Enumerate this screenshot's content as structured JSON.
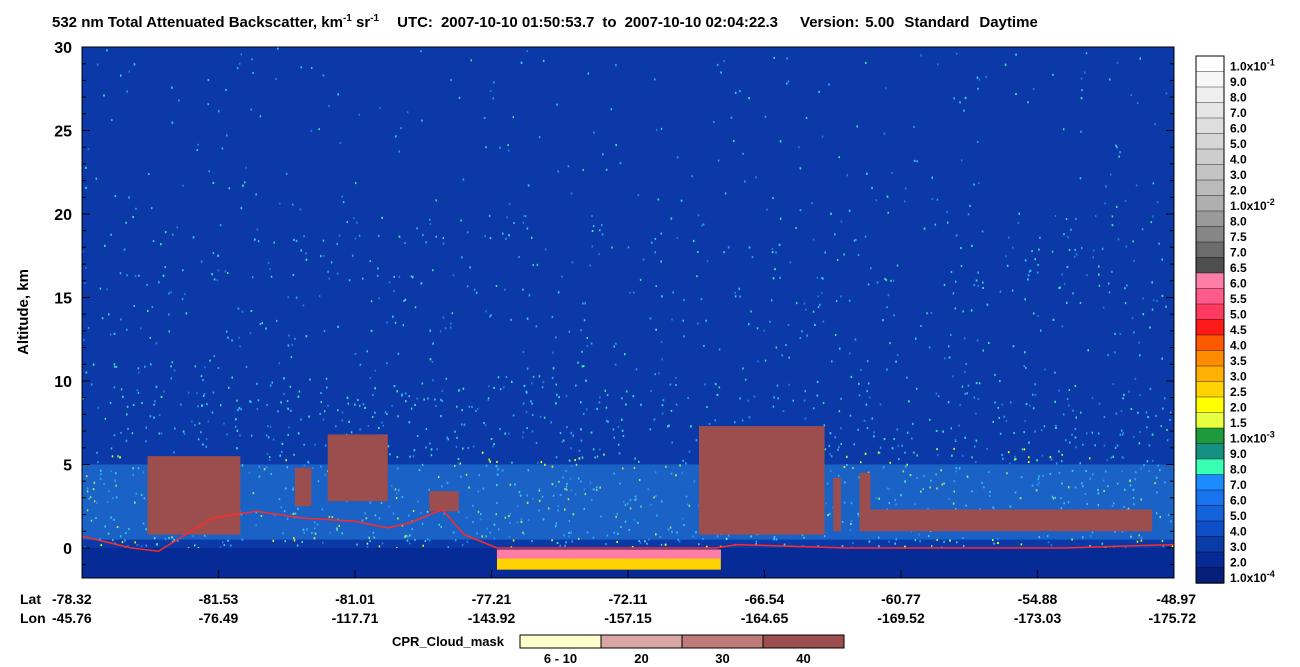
{
  "chart_data": {
    "type": "heatmap",
    "title": {
      "text": "532 nm Total Attenuated Backscatter, km",
      "unit_sup1": "-1",
      "unit_mid": " sr",
      "unit_sup2": "-1",
      "utc_label": "UTC:",
      "utc_start": "2007-10-10 01:50:53.7",
      "utc_to": "to",
      "utc_end": "2007-10-10 02:04:22.3",
      "version_label": "Version:",
      "version": "5.00",
      "mode": "Standard",
      "daytime": "Daytime"
    },
    "ylabel": "Altitude, km",
    "ylim": [
      -1.8,
      30
    ],
    "yticks": [
      "0",
      "5",
      "10",
      "15",
      "20",
      "25",
      "30"
    ],
    "ytick_values": [
      0,
      5,
      10,
      15,
      20,
      25,
      30
    ],
    "x_row_labels": [
      "Lat",
      "Lon"
    ],
    "lat": [
      "-78.32",
      "-81.53",
      "-81.01",
      "-77.21",
      "-72.11",
      "-66.54",
      "-60.77",
      "-54.88",
      "-48.97"
    ],
    "lon": [
      "-45.76",
      "-76.49",
      "-117.71",
      "-143.92",
      "-157.15",
      "-164.65",
      "-169.52",
      "-173.03",
      "-175.72"
    ],
    "colorbar": {
      "labels": [
        "1.0x10-1",
        "9.0",
        "8.0",
        "7.0",
        "6.0",
        "5.0",
        "4.0",
        "3.0",
        "2.0",
        "1.0x10-2",
        "8.0",
        "7.5",
        "7.0",
        "6.5",
        "6.0",
        "5.5",
        "5.0",
        "4.5",
        "4.0",
        "3.5",
        "3.0",
        "2.5",
        "2.0",
        "1.5",
        "1.0x10-3",
        "9.0",
        "8.0",
        "7.0",
        "6.0",
        "5.0",
        "4.0",
        "3.0",
        "2.0",
        "1.0x10-4"
      ],
      "colors": [
        "#ffffff",
        "#f7f7f7",
        "#efefef",
        "#e6e6e6",
        "#dedede",
        "#d6d6d6",
        "#cdcdcd",
        "#c4c4c4",
        "#bababa",
        "#afafaf",
        "#9a9a9a",
        "#868686",
        "#6c6c6c",
        "#4e4e4e",
        "#ff7ea8",
        "#ff5a8a",
        "#ff3a60",
        "#ff1a1a",
        "#ff5a00",
        "#ff8c00",
        "#ffb000",
        "#ffd200",
        "#ffff00",
        "#e8ff40",
        "#1e9a3c",
        "#169080",
        "#38ffb4",
        "#1a8cff",
        "#1873ee",
        "#1462dc",
        "#0e4ec8",
        "#0a3ca8",
        "#062a96",
        "#041e7a"
      ]
    },
    "cloud_mask": {
      "label": "CPR_Cloud_mask",
      "categories": [
        "6 - 10",
        "20",
        "30",
        "40"
      ],
      "colors": [
        "#ffffcc",
        "#d9a6a6",
        "#bf7a7a",
        "#9c4d4d"
      ]
    },
    "cloud_regions": [
      {
        "x0": 0.06,
        "x1": 0.145,
        "y0": 0.8,
        "y1": 5.5
      },
      {
        "x0": 0.195,
        "x1": 0.21,
        "y0": 2.5,
        "y1": 4.8
      },
      {
        "x0": 0.225,
        "x1": 0.28,
        "y0": 2.8,
        "y1": 6.8
      },
      {
        "x0": 0.318,
        "x1": 0.345,
        "y0": 2.2,
        "y1": 3.4
      },
      {
        "x0": 0.565,
        "x1": 0.68,
        "y0": 0.8,
        "y1": 7.3
      },
      {
        "x0": 0.688,
        "x1": 0.695,
        "y0": 1.0,
        "y1": 4.2
      },
      {
        "x0": 0.712,
        "x1": 0.722,
        "y0": 1.0,
        "y1": 4.5
      },
      {
        "x0": 0.722,
        "x1": 0.98,
        "y0": 1.0,
        "y1": 2.3
      }
    ],
    "surface_line": [
      [
        0.0,
        0.7
      ],
      [
        0.045,
        0.0
      ],
      [
        0.07,
        -0.2
      ],
      [
        0.12,
        1.8
      ],
      [
        0.16,
        2.2
      ],
      [
        0.2,
        1.8
      ],
      [
        0.25,
        1.6
      ],
      [
        0.28,
        1.2
      ],
      [
        0.3,
        1.5
      ],
      [
        0.33,
        2.3
      ],
      [
        0.35,
        0.8
      ],
      [
        0.38,
        0.0
      ],
      [
        0.58,
        0.0
      ],
      [
        0.6,
        0.2
      ],
      [
        0.7,
        0.0
      ],
      [
        0.9,
        0.0
      ],
      [
        1.0,
        0.2
      ]
    ],
    "ice_band": {
      "x0": 0.38,
      "x1": 0.585,
      "y0": -1.3,
      "y1": -0.1
    }
  }
}
